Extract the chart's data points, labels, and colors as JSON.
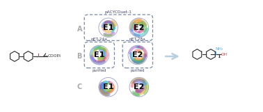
{
  "bg_color": "#ffffff",
  "plasmid_A": "pACYCDuet-1",
  "plasmid_B1": "pET-24a",
  "plasmid_B2": "pET-28a",
  "purified_label": "purified",
  "E1_label": "E1",
  "E2_label": "E2",
  "row_A_label": "A",
  "row_B_label": "B",
  "row_C_label": "C",
  "substrate_label": "COOEt",
  "product_nh2": "NH₂",
  "product_oh": "OH",
  "arrow_color": "#b8cfe0",
  "dashed_box_color": "#7788aa",
  "row_label_color": "#aaaaaa",
  "plasmid_label_color": "#444466",
  "enzyme_label_size": 8,
  "row_label_size": 7,
  "text_size": 4.5,
  "mol_color": "#333333",
  "nh2_color": "#55aadd",
  "oh_color": "#cc4444",
  "ketone_color": "#cc4444"
}
